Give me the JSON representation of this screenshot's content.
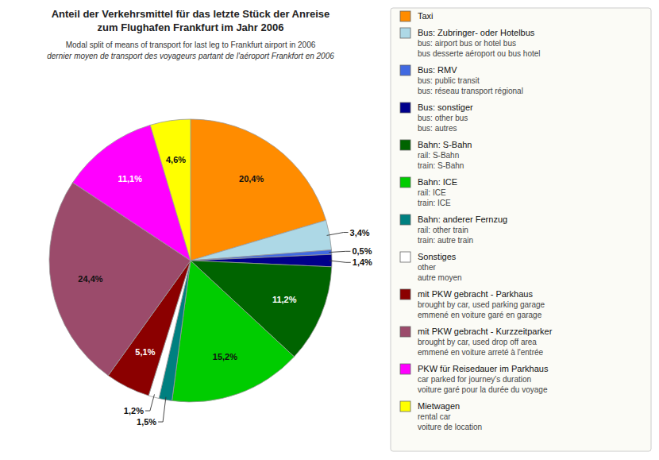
{
  "chart_data": {
    "type": "pie",
    "title": "Anteil der Verkehrsmittel für das letzte Stück der Anreise\nzum Flughafen Frankfurt im Jahr 2006",
    "subtitle": "Modal split of means of transport for last leg to Frankfurt airport in 2006\ndernier moyen de transport des voyageurs partant de l'aéroport Frankfort en 2006",
    "categories": [
      "Taxi",
      "Bus: Zubringer- oder Hotelbus\nbus: airport bus or hotel bus\nbus desserte aéroport ou bus hotel",
      "Bus: RMV\nbus: public transit\nbus: réseau transport régional",
      "Bus: sonstiger\nbus: other bus\nbus: autres",
      "Bahn: S-Bahn\nrail: S-Bahn\ntrain: S-Bahn",
      "Bahn: ICE\nrail: ICE\ntrain: ICE",
      "Bahn: anderer Fernzug\nrail: other train\ntrain: autre train",
      "Sonstiges\nother\nautre moyen",
      "mit PKW gebracht - Parkhaus\nbrought by car, used parking garage\nemmené en voiture garé en garage",
      "mit PKW gebracht - Kurzzeitparker\nbrought by car, used drop off area\nemmené en voiture arreté à l'entrée",
      "PKW für Reisedauer im Parkhaus\ncar parked for journey's duration\nvoiture garé pour la durée du voyage",
      "Mietwagen\nrental car\nvoiture de location"
    ],
    "values": [
      20.4,
      3.4,
      0.5,
      1.4,
      11.2,
      15.2,
      1.5,
      1.2,
      5.1,
      24.4,
      11.1,
      4.6
    ],
    "value_labels": [
      "20,4%",
      "3,4%",
      "0,5%",
      "1,4%",
      "11,2%",
      "15,2%",
      "1,5%",
      "1,2%",
      "5,1%",
      "24,4%",
      "11,1%",
      "4,6%"
    ],
    "colors": [
      "#FF8C00",
      "#ADD8E6",
      "#4169E1",
      "#00008B",
      "#006400",
      "#00CC00",
      "#008080",
      "#FFFFFF",
      "#8B0000",
      "#9B4B6B",
      "#FF00FF",
      "#FFFF00"
    ],
    "data_labels": true,
    "legend": "right"
  }
}
